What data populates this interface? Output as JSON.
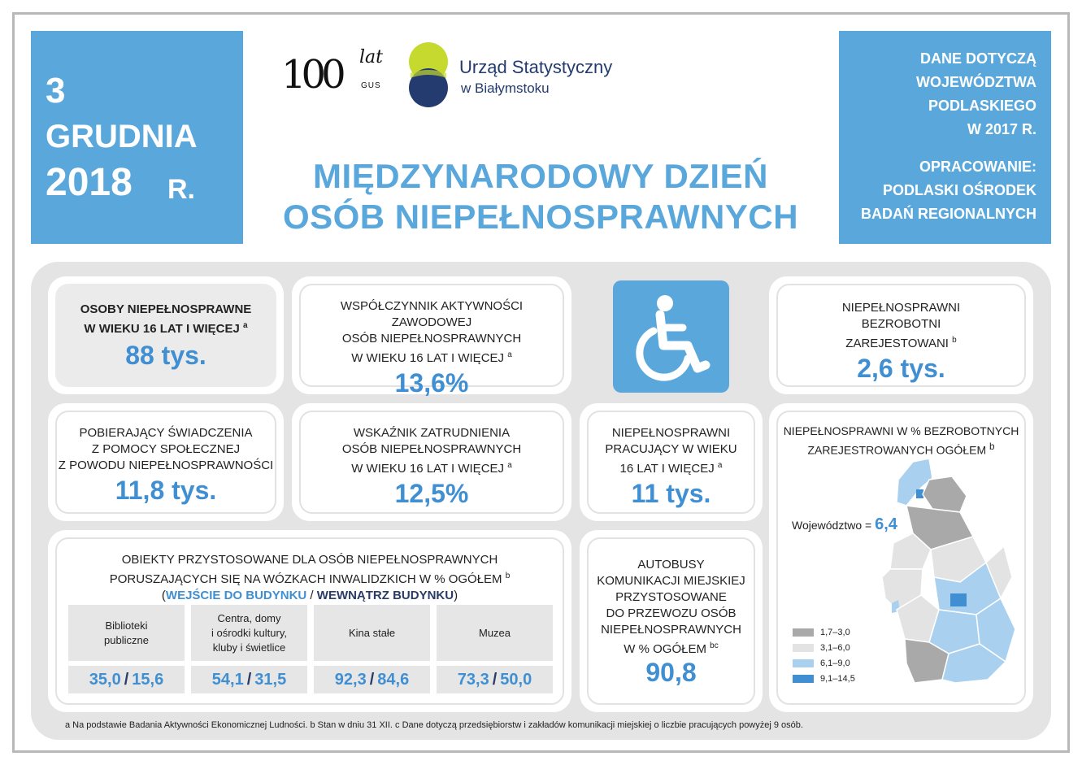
{
  "date": {
    "day": "3",
    "month": "GRUDNIA",
    "year": "2018",
    "suffix": "R."
  },
  "info": {
    "line1": "DANE DOTYCZĄ",
    "line2": "WOJEWÓDZTWA",
    "line3": "PODLASKIEGO",
    "line4": "W 2017 R.",
    "line5": "OPRACOWANIE:",
    "line6": "PODLASKI OŚRODEK",
    "line7": "BADAŃ REGIONALNYCH"
  },
  "logos": {
    "hundred": "100",
    "lat": "lat",
    "gus": "GUS",
    "office_line1": "Urząd Statystyczny",
    "office_line2": "w Białymstoku"
  },
  "title": {
    "line1": "MIĘDZYNARODOWY DZIEŃ",
    "line2": "OSÓB NIEPEŁNOSPRAWNYCH"
  },
  "cards": {
    "osoby": {
      "l1": "OSOBY  NIEPEŁNOSPRAWNE",
      "l2": "W WIEKU 16 LAT I WIĘCEJ",
      "sup": "a",
      "value": "88 tys."
    },
    "wspolczynnik": {
      "l1": "WSPÓŁCZYNNIK AKTYWNOŚCI ZAWODOWEJ",
      "l2": "OSÓB NIEPEŁNOSPRAWNYCH",
      "l3": "W WIEKU 16 LAT I WIĘCEJ",
      "sup": "a",
      "value": "13,6%"
    },
    "bezrobotni": {
      "l1": "NIEPEŁNOSPRAWNI",
      "l2": "BEZROBOTNI",
      "l3": "ZAREJESTOWANI",
      "sup": "b",
      "value": "2,6 tys."
    },
    "pobierajacy": {
      "l1": "POBIERAJĄCY ŚWIADCZENIA",
      "l2": "Z POMOCY SPOŁECZNEJ",
      "l3": "Z POWODU NIEPEŁNOSPRAWNOŚCI",
      "value": "11,8 tys."
    },
    "wskaznik": {
      "l1": "WSKAŹNIK ZATRUDNIENIA",
      "l2": "OSÓB NIEPEŁNOSPRAWNYCH",
      "l3": "W WIEKU 16 LAT I WIĘCEJ",
      "sup": "a",
      "value": "12,5%"
    },
    "pracujacy": {
      "l1": "NIEPEŁNOSPRAWNI",
      "l2": "PRACUJĄCY W WIEKU",
      "l3": "16 LAT I WIĘCEJ",
      "sup": "a",
      "value": "11 tys."
    },
    "autobusy": {
      "l1": "AUTOBUSY",
      "l2": "KOMUNIKACJI MIEJSKIEJ",
      "l3": "PRZYSTOSOWANE",
      "l4": "DO PRZEWOZU OSÓB",
      "l5": "NIEPEŁNOSPRAWNYCH",
      "l6": "W % OGÓŁEM",
      "sup": "bc",
      "value": "90,8"
    }
  },
  "objects": {
    "l1": "OBIEKTY PRZYSTOSOWANE DLA OSÓB NIEPEŁNOSPRAWNYCH",
    "l2": "PORUSZAJĄCYCH SIĘ NA WÓZKACH INWALIDZKICH W % OGÓŁEM",
    "sup": "b",
    "open": "(",
    "entry": "WEJŚCIE DO BUDYNKU",
    "slash": " / ",
    "inside": "WEWNĄTRZ BUDYNKU",
    "close": ")",
    "columns": [
      {
        "h1": "Biblioteki",
        "h2": "publiczne",
        "h3": "",
        "a": "35,0",
        "b": "15,6"
      },
      {
        "h1": "Centra, domy",
        "h2": "i ośrodki kultury,",
        "h3": "kluby i świetlice",
        "a": "54,1",
        "b": "31,5"
      },
      {
        "h1": "Kina stałe",
        "h2": "",
        "h3": "",
        "a": "92,3",
        "b": "84,6"
      },
      {
        "h1": "Muzea",
        "h2": "",
        "h3": "",
        "a": "73,3",
        "b": "50,0"
      }
    ],
    "slash_sep": "/"
  },
  "map": {
    "l1": "NIEPEŁNOSPRAWNI W % BEZROBOTNYCH",
    "l2": "ZAREJESTROWANYCH OGÓŁEM",
    "sup": "b",
    "woj_label": "Województwo =",
    "woj_value": "6,4",
    "legend": [
      {
        "label": "1,7–3,0",
        "color": "#a9a9a9"
      },
      {
        "label": "3,1–6,0",
        "color": "#e3e3e3"
      },
      {
        "label": "6,1–9,0",
        "color": "#a9d1ef"
      },
      {
        "label": "9,1–14,5",
        "color": "#3f8fd2"
      }
    ]
  },
  "footnote": "a Na podstawie Badania Aktywności Ekonomicznej Ludności. b Stan w dniu 31 XII. c Dane dotyczą przedsiębiorstw i zakładów komunikacji miejskiej o liczbie pracujących powyżej 9 osób."
}
